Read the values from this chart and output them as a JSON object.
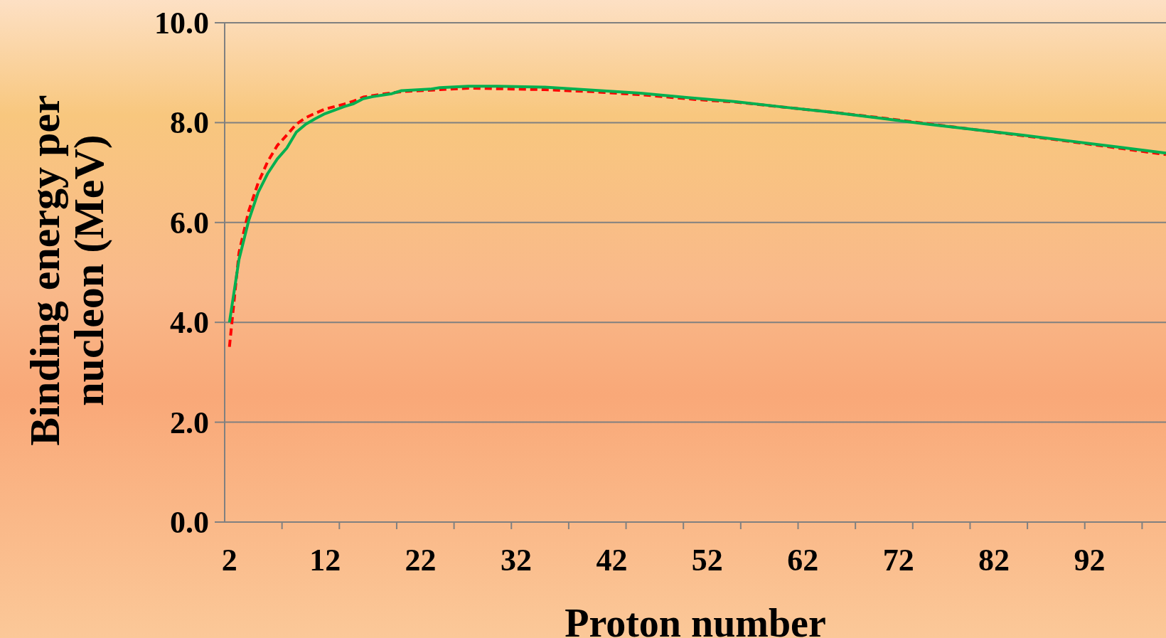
{
  "chart_data": {
    "type": "line",
    "xlabel": "Proton number",
    "ylabel": "Binding energy per nucleon (MeV)",
    "xlim": [
      1.5,
      100
    ],
    "ylim": [
      0,
      10
    ],
    "xticks": [
      {
        "value": 2,
        "label": "2"
      },
      {
        "value": 12,
        "label": "12"
      },
      {
        "value": 22,
        "label": "22"
      },
      {
        "value": 32,
        "label": "32"
      },
      {
        "value": 42,
        "label": "42"
      },
      {
        "value": 52,
        "label": "52"
      },
      {
        "value": 62,
        "label": "62"
      },
      {
        "value": 72,
        "label": "72"
      },
      {
        "value": 82,
        "label": "82"
      },
      {
        "value": 92,
        "label": "92"
      },
      {
        "value": 7.5,
        "label": null
      },
      {
        "value": 13.5,
        "label": null
      },
      {
        "value": 19.5,
        "label": null
      },
      {
        "value": 25.5,
        "label": null
      },
      {
        "value": 31.5,
        "label": null
      },
      {
        "value": 37.5,
        "label": null
      },
      {
        "value": 43.5,
        "label": null
      },
      {
        "value": 49.5,
        "label": null
      },
      {
        "value": 55.5,
        "label": null
      },
      {
        "value": 61.5,
        "label": null
      },
      {
        "value": 67.5,
        "label": null
      },
      {
        "value": 73.5,
        "label": null
      },
      {
        "value": 79.5,
        "label": null
      },
      {
        "value": 85.5,
        "label": null
      },
      {
        "value": 91.5,
        "label": null
      },
      {
        "value": 97.5,
        "label": null
      }
    ],
    "yticks": [
      {
        "value": 0,
        "label": "0.0"
      },
      {
        "value": 2,
        "label": "2.0"
      },
      {
        "value": 4,
        "label": "4.0"
      },
      {
        "value": 6,
        "label": "6.0"
      },
      {
        "value": 8,
        "label": "8.0"
      },
      {
        "value": 10,
        "label": "10.0"
      }
    ],
    "grid": "y",
    "marker": "none",
    "series": [
      {
        "color": "#ff0000",
        "line_style": "dashed",
        "x": [
          2,
          3,
          4,
          5,
          6,
          7,
          8,
          9,
          10,
          11,
          12,
          13,
          14,
          15,
          16,
          18,
          20,
          24,
          27,
          30,
          35,
          40,
          45,
          51,
          55,
          60,
          65,
          70,
          75,
          80,
          85,
          90,
          95,
          100
        ],
        "values": [
          3.51,
          5.4,
          6.22,
          6.79,
          7.22,
          7.54,
          7.75,
          7.97,
          8.1,
          8.19,
          8.27,
          8.32,
          8.37,
          8.43,
          8.51,
          8.57,
          8.62,
          8.66,
          8.69,
          8.68,
          8.66,
          8.62,
          8.56,
          8.46,
          8.41,
          8.31,
          8.21,
          8.1,
          7.98,
          7.86,
          7.74,
          7.62,
          7.49,
          7.36
        ]
      },
      {
        "color": "#00b050",
        "line_style": "solid",
        "x": [
          2,
          3,
          4,
          5,
          6,
          7,
          8,
          9,
          10,
          11,
          12,
          13,
          14,
          15,
          16,
          17,
          18,
          19,
          20,
          22,
          23,
          24,
          27,
          30,
          35,
          40,
          45,
          50,
          55,
          60,
          65,
          70,
          75,
          80,
          85,
          90,
          95,
          100
        ],
        "values": [
          4.0,
          5.26,
          6.03,
          6.6,
          6.98,
          7.27,
          7.49,
          7.81,
          7.97,
          8.08,
          8.18,
          8.25,
          8.32,
          8.38,
          8.48,
          8.52,
          8.55,
          8.58,
          8.64,
          8.66,
          8.67,
          8.7,
          8.73,
          8.73,
          8.71,
          8.65,
          8.59,
          8.5,
          8.42,
          8.31,
          8.21,
          8.09,
          7.97,
          7.86,
          7.75,
          7.63,
          7.51,
          7.39
        ]
      }
    ]
  }
}
